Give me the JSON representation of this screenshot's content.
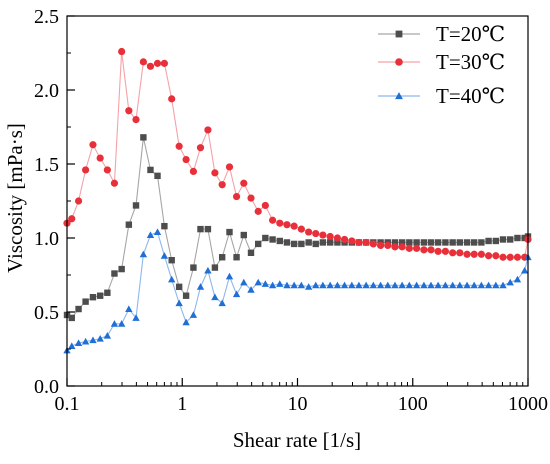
{
  "chart_data": {
    "type": "line",
    "xlabel": "Shear rate [1/s]",
    "ylabel": "Viscosity [mPa·s]",
    "xscale": "log",
    "xlim": [
      0.1,
      1000
    ],
    "ylim": [
      0.0,
      2.5
    ],
    "xticks": [
      0.1,
      1,
      10,
      100,
      1000
    ],
    "xtick_labels": [
      "0.1",
      "1",
      "10",
      "100",
      "1000"
    ],
    "yticks": [
      0.0,
      0.5,
      1.0,
      1.5,
      2.0,
      2.5
    ],
    "ytick_labels": [
      "0.0",
      "0.5",
      "1.0",
      "1.5",
      "2.0",
      "2.5"
    ],
    "grid": false,
    "legend_position": "top-right",
    "series": [
      {
        "name": "T=20℃",
        "color": "#4d4d4d",
        "line_color": "#a6a6a6",
        "marker": "square",
        "x": [
          0.1,
          0.11,
          0.126,
          0.145,
          0.168,
          0.194,
          0.224,
          0.258,
          0.298,
          0.344,
          0.397,
          0.46,
          0.53,
          0.61,
          0.7,
          0.81,
          0.94,
          1.08,
          1.25,
          1.44,
          1.67,
          1.92,
          2.22,
          2.57,
          2.96,
          3.42,
          3.95,
          4.56,
          5.26,
          6.08,
          7.02,
          8.1,
          9.35,
          10.8,
          12.5,
          14.4,
          16.6,
          19.2,
          22.2,
          25.6,
          29.6,
          34.1,
          39.4,
          45.5,
          52.6,
          60.7,
          70.1,
          80.9,
          93.4,
          108,
          125,
          144,
          166,
          192,
          222,
          256,
          296,
          341,
          394,
          455,
          526,
          607,
          701,
          810,
          935,
          1000
        ],
        "y": [
          0.48,
          0.46,
          0.52,
          0.57,
          0.6,
          0.61,
          0.63,
          0.76,
          0.79,
          1.09,
          1.22,
          1.68,
          1.46,
          1.42,
          1.08,
          0.85,
          0.67,
          0.61,
          0.8,
          1.06,
          1.06,
          0.8,
          0.87,
          1.04,
          0.87,
          1.02,
          0.9,
          0.96,
          1.0,
          0.99,
          0.98,
          0.97,
          0.96,
          0.96,
          0.97,
          0.96,
          0.97,
          0.97,
          0.97,
          0.97,
          0.97,
          0.97,
          0.97,
          0.97,
          0.97,
          0.97,
          0.97,
          0.97,
          0.97,
          0.97,
          0.97,
          0.97,
          0.97,
          0.97,
          0.97,
          0.97,
          0.97,
          0.97,
          0.97,
          0.98,
          0.98,
          0.99,
          0.99,
          1.0,
          1.0,
          1.01
        ]
      },
      {
        "name": "T=30℃",
        "color": "#e8303a",
        "line_color": "#f4a3a8",
        "marker": "circle",
        "x": [
          0.1,
          0.11,
          0.126,
          0.145,
          0.168,
          0.194,
          0.224,
          0.258,
          0.298,
          0.344,
          0.397,
          0.46,
          0.53,
          0.61,
          0.7,
          0.81,
          0.94,
          1.08,
          1.25,
          1.44,
          1.67,
          1.92,
          2.22,
          2.57,
          2.96,
          3.42,
          3.95,
          4.56,
          5.26,
          6.08,
          7.02,
          8.1,
          9.35,
          10.8,
          12.5,
          14.4,
          16.6,
          19.2,
          22.2,
          25.6,
          29.6,
          34.1,
          39.4,
          45.5,
          52.6,
          60.7,
          70.1,
          80.9,
          93.4,
          108,
          125,
          144,
          166,
          192,
          222,
          256,
          296,
          341,
          394,
          455,
          526,
          607,
          701,
          810,
          935,
          1000
        ],
        "y": [
          1.1,
          1.13,
          1.25,
          1.46,
          1.63,
          1.54,
          1.46,
          1.37,
          2.26,
          1.86,
          1.8,
          2.19,
          2.16,
          2.18,
          2.18,
          1.94,
          1.62,
          1.53,
          1.45,
          1.61,
          1.73,
          1.44,
          1.36,
          1.48,
          1.28,
          1.37,
          1.27,
          1.18,
          1.22,
          1.12,
          1.1,
          1.09,
          1.08,
          1.06,
          1.04,
          1.03,
          1.02,
          1.01,
          1.0,
          0.99,
          0.98,
          0.97,
          0.97,
          0.96,
          0.95,
          0.95,
          0.94,
          0.94,
          0.93,
          0.93,
          0.92,
          0.92,
          0.91,
          0.91,
          0.9,
          0.9,
          0.89,
          0.89,
          0.89,
          0.88,
          0.88,
          0.87,
          0.87,
          0.87,
          0.87,
          0.99
        ]
      },
      {
        "name": "T=40℃",
        "color": "#1f6fd6",
        "line_color": "#8db8ee",
        "marker": "triangle",
        "x": [
          0.1,
          0.11,
          0.126,
          0.145,
          0.168,
          0.194,
          0.224,
          0.258,
          0.298,
          0.344,
          0.397,
          0.46,
          0.53,
          0.61,
          0.7,
          0.81,
          0.94,
          1.08,
          1.25,
          1.44,
          1.67,
          1.92,
          2.22,
          2.57,
          2.96,
          3.42,
          3.95,
          4.56,
          5.26,
          6.08,
          7.02,
          8.1,
          9.35,
          10.8,
          12.5,
          14.4,
          16.6,
          19.2,
          22.2,
          25.6,
          29.6,
          34.1,
          39.4,
          45.5,
          52.6,
          60.7,
          70.1,
          80.9,
          93.4,
          108,
          125,
          144,
          166,
          192,
          222,
          256,
          296,
          341,
          394,
          455,
          526,
          607,
          701,
          810,
          935,
          1000
        ],
        "y": [
          0.24,
          0.27,
          0.29,
          0.3,
          0.31,
          0.32,
          0.34,
          0.42,
          0.42,
          0.52,
          0.46,
          0.89,
          1.02,
          1.04,
          0.88,
          0.72,
          0.56,
          0.43,
          0.48,
          0.67,
          0.78,
          0.6,
          0.56,
          0.74,
          0.62,
          0.7,
          0.65,
          0.7,
          0.69,
          0.68,
          0.69,
          0.68,
          0.68,
          0.68,
          0.67,
          0.68,
          0.68,
          0.68,
          0.68,
          0.68,
          0.68,
          0.68,
          0.68,
          0.68,
          0.68,
          0.68,
          0.68,
          0.68,
          0.68,
          0.68,
          0.68,
          0.68,
          0.68,
          0.68,
          0.68,
          0.68,
          0.68,
          0.68,
          0.68,
          0.68,
          0.68,
          0.68,
          0.7,
          0.72,
          0.78,
          0.87
        ]
      }
    ]
  }
}
